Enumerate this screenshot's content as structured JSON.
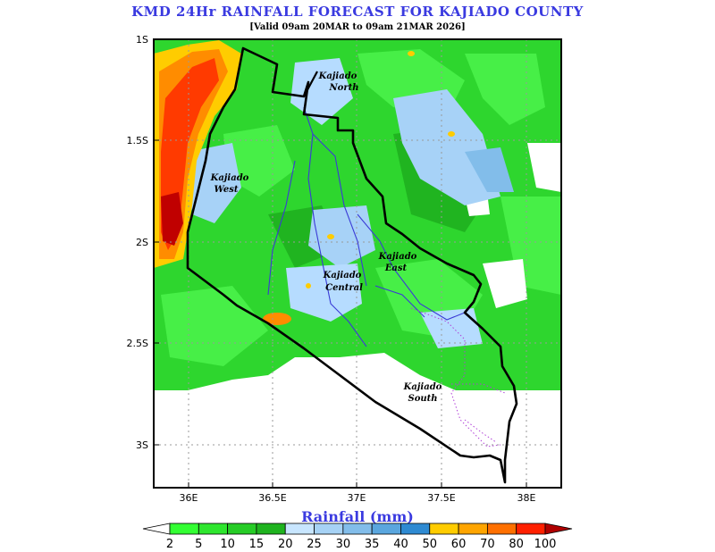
{
  "header": {
    "title": "KMD 24Hr RAINFALL FORECAST FOR KAJIADO COUNTY",
    "subtitle": "[Valid 09am 20MAR to 09am 21MAR 2026]"
  },
  "map": {
    "lon_ticks": [
      "36E",
      "36.5E",
      "37E",
      "37.5E",
      "38E"
    ],
    "lat_ticks": [
      "1S",
      "1.5S",
      "2S",
      "2.5S",
      "3S"
    ],
    "regions": [
      {
        "line1": "Kajiado",
        "line2": "North"
      },
      {
        "line1": "Kajiado",
        "line2": "West"
      },
      {
        "line1": "Kajiado",
        "line2": "East"
      },
      {
        "line1": "Kajiado",
        "line2": "Central"
      },
      {
        "line1": "Kajiado",
        "line2": "South"
      }
    ]
  },
  "colorbar": {
    "title": "Rainfall (mm)",
    "ticks": [
      "2",
      "5",
      "10",
      "15",
      "20",
      "25",
      "30",
      "35",
      "40",
      "50",
      "60",
      "70",
      "80",
      "100"
    ],
    "colors": [
      "#ffffff",
      "#33ff33",
      "#2ee62e",
      "#26cc26",
      "#1fb31f",
      "#c8e6ff",
      "#a6d2f5",
      "#82bdea",
      "#5aa6de",
      "#2e8ad2",
      "#ffcc00",
      "#ffa500",
      "#ff7000",
      "#ff2000",
      "#b00000"
    ]
  }
}
